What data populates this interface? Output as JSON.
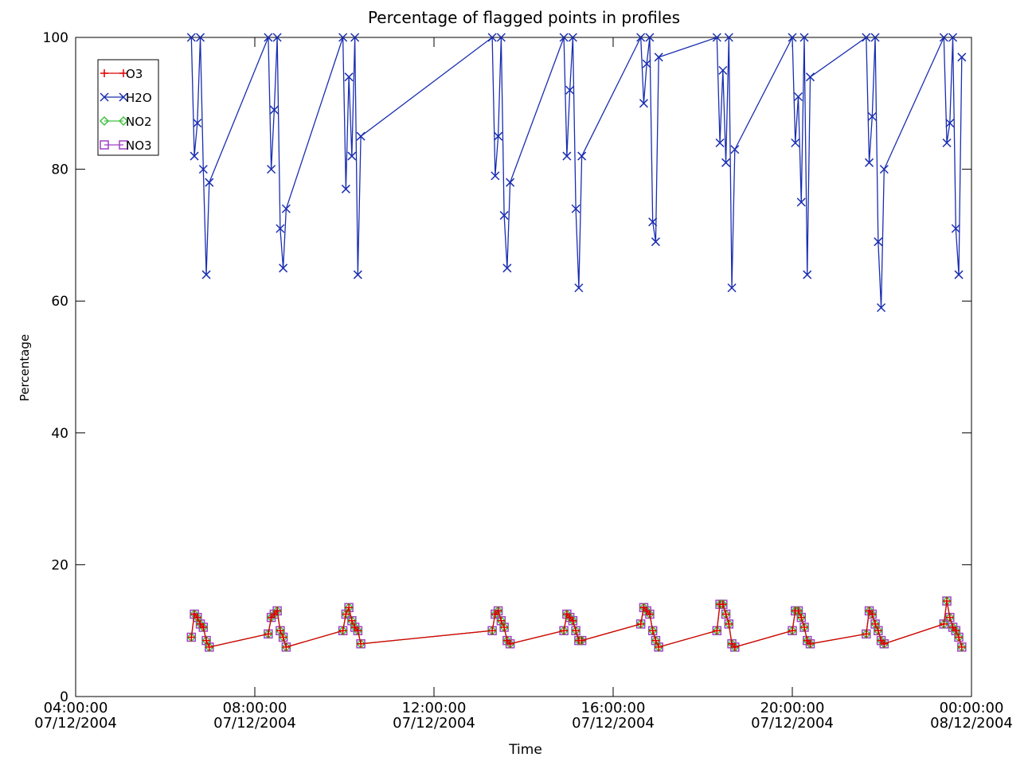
{
  "chart_data": {
    "type": "line",
    "title": "Percentage of flagged points in profiles",
    "x_label": "Time",
    "y_label": "Percentage",
    "xlim": [
      "2004-12-07T04:00",
      "2004-12-08T00:00"
    ],
    "xticks": [
      {
        "value": "2004-12-07T04:00",
        "label": "04:00:00\n07/12/2004"
      },
      {
        "value": "2004-12-07T08:00",
        "label": "08:00:00\n07/12/2004"
      },
      {
        "value": "2004-12-07T12:00",
        "label": "12:00:00\n07/12/2004"
      },
      {
        "value": "2004-12-07T16:00",
        "label": "16:00:00\n07/12/2004"
      },
      {
        "value": "2004-12-07T20:00",
        "label": "20:00:00\n07/12/2004"
      },
      {
        "value": "2004-12-08T00:00",
        "label": "00:00:00\n08/12/2004"
      }
    ],
    "ylim": [
      0,
      100
    ],
    "yticks": [
      0,
      20,
      40,
      60,
      80,
      100
    ],
    "legend": "upper left",
    "x": [
      "2004-12-07T06:35",
      "2004-12-07T06:39",
      "2004-12-07T06:43",
      "2004-12-07T06:47",
      "2004-12-07T06:51",
      "2004-12-07T06:55",
      "2004-12-07T06:59",
      "2004-12-07T08:18",
      "2004-12-07T08:22",
      "2004-12-07T08:26",
      "2004-12-07T08:30",
      "2004-12-07T08:34",
      "2004-12-07T08:38",
      "2004-12-07T08:42",
      "2004-12-07T09:58",
      "2004-12-07T10:02",
      "2004-12-07T10:06",
      "2004-12-07T10:10",
      "2004-12-07T10:14",
      "2004-12-07T10:18",
      "2004-12-07T10:22",
      "2004-12-07T13:18",
      "2004-12-07T13:22",
      "2004-12-07T13:26",
      "2004-12-07T13:30",
      "2004-12-07T13:34",
      "2004-12-07T13:38",
      "2004-12-07T13:42",
      "2004-12-07T14:54",
      "2004-12-07T14:58",
      "2004-12-07T15:02",
      "2004-12-07T15:06",
      "2004-12-07T15:10",
      "2004-12-07T15:14",
      "2004-12-07T15:18",
      "2004-12-07T16:37",
      "2004-12-07T16:41",
      "2004-12-07T16:45",
      "2004-12-07T16:49",
      "2004-12-07T16:53",
      "2004-12-07T16:57",
      "2004-12-07T17:01",
      "2004-12-07T18:19",
      "2004-12-07T18:23",
      "2004-12-07T18:27",
      "2004-12-07T18:31",
      "2004-12-07T18:35",
      "2004-12-07T18:39",
      "2004-12-07T18:43",
      "2004-12-07T20:00",
      "2004-12-07T20:04",
      "2004-12-07T20:08",
      "2004-12-07T20:12",
      "2004-12-07T20:16",
      "2004-12-07T20:20",
      "2004-12-07T20:24",
      "2004-12-07T21:39",
      "2004-12-07T21:43",
      "2004-12-07T21:47",
      "2004-12-07T21:51",
      "2004-12-07T21:55",
      "2004-12-07T21:59",
      "2004-12-07T22:03",
      "2004-12-07T23:23",
      "2004-12-07T23:27",
      "2004-12-07T23:31",
      "2004-12-07T23:35",
      "2004-12-07T23:39",
      "2004-12-07T23:43",
      "2004-12-07T23:47"
    ],
    "series": [
      {
        "name": "O3",
        "color": "#e00000",
        "marker": "plus",
        "values": [
          9,
          12.5,
          12,
          11,
          10.5,
          8.5,
          7.5,
          9.5,
          12,
          12.5,
          13,
          10,
          9,
          7.5,
          10,
          12.5,
          13.5,
          11.5,
          10.5,
          10,
          8,
          10,
          12.5,
          13,
          11.5,
          10.5,
          8.5,
          8,
          10,
          12.5,
          12,
          11.5,
          10,
          8.5,
          8.5,
          11,
          13.5,
          13,
          12.5,
          10,
          8.5,
          7.5,
          10,
          14,
          14,
          12.5,
          11,
          8,
          7.5,
          10,
          13,
          13,
          12,
          10.5,
          8.5,
          8,
          9.5,
          13,
          12.5,
          11,
          10,
          8.5,
          8,
          11,
          14.5,
          12,
          10.5,
          10,
          9,
          7.5
        ]
      },
      {
        "name": "H2O",
        "color": "#1a2eb0",
        "marker": "x",
        "values": [
          100,
          82,
          87,
          100,
          80,
          64,
          78,
          100,
          80,
          89,
          100,
          71,
          65,
          74,
          100,
          77,
          94,
          82,
          100,
          64,
          85,
          100,
          79,
          85,
          100,
          73,
          65,
          78,
          100,
          82,
          92,
          100,
          74,
          62,
          82,
          100,
          90,
          96,
          100,
          72,
          69,
          97,
          100,
          84,
          95,
          81,
          100,
          62,
          83,
          100,
          84,
          91,
          75,
          100,
          64,
          94,
          100,
          81,
          88,
          100,
          69,
          59,
          80,
          100,
          84,
          87,
          100,
          71,
          64,
          97
        ]
      },
      {
        "name": "NO2",
        "color": "#40c040",
        "marker": "diamond",
        "values": [
          9,
          12.5,
          12,
          11,
          10.5,
          8.5,
          7.5,
          9.5,
          12,
          12.5,
          13,
          10,
          9,
          7.5,
          10,
          12.5,
          13.5,
          11.5,
          10.5,
          10,
          8,
          10,
          12.5,
          13,
          11.5,
          10.5,
          8.5,
          8,
          10,
          12.5,
          12,
          11.5,
          10,
          8.5,
          8.5,
          11,
          13.5,
          13,
          12.5,
          10,
          8.5,
          7.5,
          10,
          14,
          14,
          12.5,
          11,
          8,
          7.5,
          10,
          13,
          13,
          12,
          10.5,
          8.5,
          8,
          9.5,
          13,
          12.5,
          11,
          10,
          8.5,
          8,
          11,
          14.5,
          12,
          10.5,
          10,
          9,
          7.5
        ]
      },
      {
        "name": "NO3",
        "color": "#a040c8",
        "marker": "square",
        "values": [
          9,
          12.5,
          12,
          11,
          10.5,
          8.5,
          7.5,
          9.5,
          12,
          12.5,
          13,
          10,
          9,
          7.5,
          10,
          12.5,
          13.5,
          11.5,
          10.5,
          10,
          8,
          10,
          12.5,
          13,
          11.5,
          10.5,
          8.5,
          8,
          10,
          12.5,
          12,
          11.5,
          10,
          8.5,
          8.5,
          11,
          13.5,
          13,
          12.5,
          10,
          8.5,
          7.5,
          10,
          14,
          14,
          12.5,
          11,
          8,
          7.5,
          10,
          13,
          13,
          12,
          10.5,
          8.5,
          8,
          9.5,
          13,
          12.5,
          11,
          10,
          8.5,
          8,
          11,
          14.5,
          12,
          10.5,
          10,
          9,
          7.5
        ]
      }
    ]
  }
}
